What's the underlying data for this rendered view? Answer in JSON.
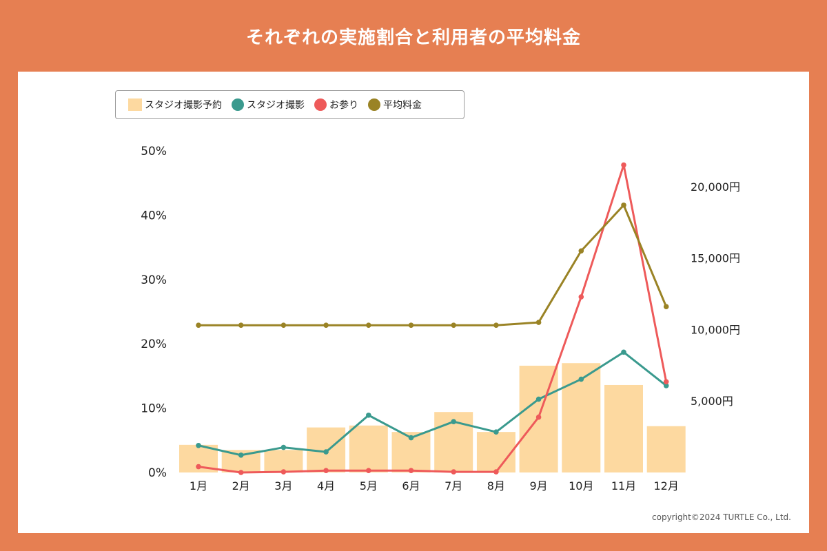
{
  "title": "それぞれの実施割合と利用者の平均料金",
  "copyright": "copyright©2024 TURTLE Co., Ltd.",
  "colors": {
    "background": "#E67F52",
    "bar": "#FDD9A0",
    "studio": "#3A9A8E",
    "omairi": "#EE5A5A",
    "avg": "#9A8325"
  },
  "chart_data": {
    "type": "bar",
    "categories": [
      "1月",
      "2月",
      "3月",
      "4月",
      "5月",
      "6月",
      "7月",
      "8月",
      "9月",
      "10月",
      "11月",
      "12月"
    ],
    "y_ticks": [
      "50%",
      "40%",
      "30%",
      "20%",
      "10%",
      "0%"
    ],
    "y2_ticks": [
      "20,000円",
      "15,000円",
      "10,000円",
      "5,000円"
    ],
    "ylim": [
      0,
      50
    ],
    "y2lim": [
      0,
      22500
    ],
    "legend_position": "top-left",
    "grid": false,
    "series": [
      {
        "name": "スタジオ撮影予約",
        "type": "bar",
        "axis": "left",
        "color": "#FDD9A0",
        "values": [
          4.3,
          3.5,
          3.5,
          7.0,
          7.3,
          6.3,
          9.4,
          6.3,
          16.6,
          17.0,
          13.6,
          7.2
        ]
      },
      {
        "name": "スタジオ撮影",
        "type": "line",
        "axis": "left",
        "color": "#3A9A8E",
        "values": [
          4.2,
          2.7,
          3.9,
          3.2,
          8.9,
          5.4,
          7.9,
          6.3,
          11.4,
          14.5,
          18.7,
          13.5
        ]
      },
      {
        "name": "お参り",
        "type": "line",
        "axis": "left",
        "color": "#EE5A5A",
        "values": [
          0.9,
          0.0,
          0.1,
          0.3,
          0.3,
          0.3,
          0.1,
          0.1,
          8.6,
          27.3,
          47.8,
          14.1
        ]
      },
      {
        "name": "平均料金",
        "type": "line",
        "axis": "right",
        "color": "#9A8325",
        "values": [
          10300,
          10300,
          10300,
          10300,
          10300,
          10300,
          10300,
          10300,
          10500,
          15500,
          18700,
          11600
        ]
      }
    ]
  }
}
